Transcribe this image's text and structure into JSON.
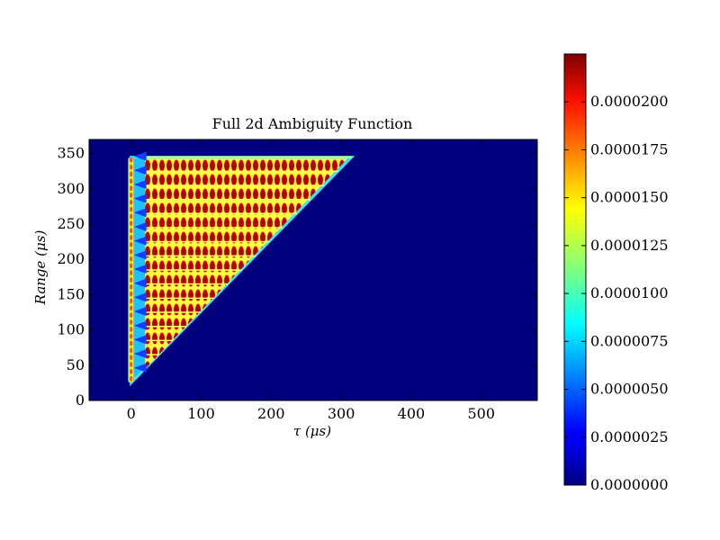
{
  "chart_data": {
    "type": "heatmap",
    "title": "Full 2d Ambiguity Function",
    "xlabel": "τ (μs)",
    "ylabel": "Range (μs)",
    "xlim": [
      -60,
      580
    ],
    "ylim": [
      0,
      370
    ],
    "x_ticks": [
      0,
      100,
      200,
      300,
      400,
      500
    ],
    "y_ticks": [
      0,
      50,
      100,
      150,
      200,
      250,
      300,
      350
    ],
    "colormap": "jet",
    "colorbar": {
      "min": 0.0,
      "max": 2.25e-05,
      "ticks": [
        "0.0000000",
        "0.0000025",
        "0.0000050",
        "0.0000075",
        "0.0000100",
        "0.0000125",
        "0.0000150",
        "0.0000175",
        "0.0000200"
      ],
      "tick_values": [
        0,
        2.5e-06,
        5e-06,
        7.5e-06,
        1e-05,
        1.25e-05,
        1.5e-05,
        1.75e-05,
        2e-05
      ]
    },
    "background_value": 0.0,
    "region": {
      "shape": "triangle",
      "vertices_tau_range": [
        [
          0,
          25
        ],
        [
          0,
          345
        ],
        [
          315,
          345
        ]
      ],
      "value": 2.1e-05,
      "vertical_stripe_tau": 0,
      "vertical_stripe_range": [
        25,
        345
      ],
      "diagonal_start": [
        20,
        45
      ],
      "row_spacing_us": 20,
      "col_spacing_us": 10
    }
  }
}
